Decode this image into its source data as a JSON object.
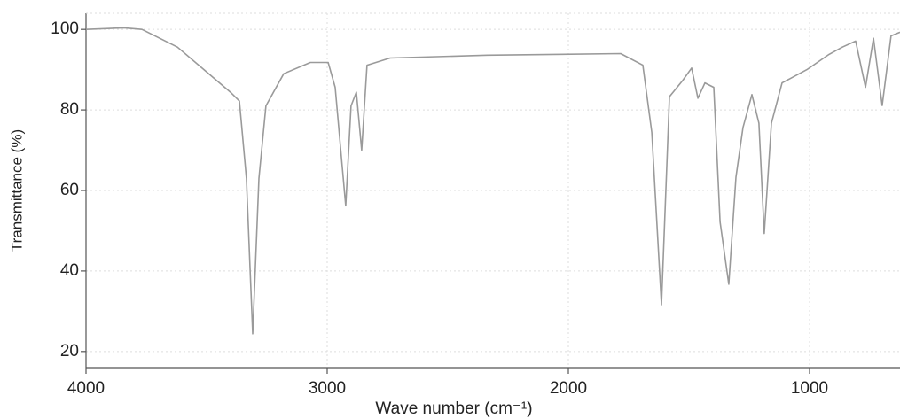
{
  "chart_data": {
    "type": "line",
    "x_label": "Wave number (cm⁻¹)",
    "y_label": "Transmittance (%)",
    "x": [
      4000,
      3842,
      3768,
      3621,
      3511,
      3401,
      3364,
      3335,
      3309,
      3283,
      3254,
      3180,
      3070,
      2996,
      2967,
      2923,
      2901,
      2879,
      2857,
      2835,
      2739,
      2335,
      1783,
      1691,
      1654,
      1614,
      1581,
      1526,
      1489,
      1463,
      1434,
      1397,
      1371,
      1335,
      1305,
      1276,
      1239,
      1210,
      1188,
      1158,
      1114,
      1011,
      919,
      864,
      809,
      768,
      735,
      699,
      662,
      625
    ],
    "values": [
      100,
      100.4,
      100,
      95.6,
      90,
      84.4,
      82.2,
      63,
      24.4,
      63,
      81,
      89,
      91.8,
      91.8,
      85.6,
      56.2,
      81,
      84.4,
      70,
      91.1,
      92.9,
      93.6,
      94,
      91.1,
      74.4,
      31.6,
      83.3,
      87.3,
      90.4,
      82.9,
      86.7,
      85.6,
      52.2,
      36.7,
      63.3,
      75.6,
      83.8,
      76.7,
      49.3,
      76.7,
      86.7,
      90,
      93.8,
      95.6,
      97.1,
      85.6,
      97.8,
      81.1,
      98.4,
      99.3
    ],
    "color": "#9a9a9a",
    "xlim": [
      4000,
      625
    ],
    "xticks": [
      4000,
      3000,
      2000,
      1000
    ],
    "ylim": [
      16,
      104
    ],
    "yticks": [
      20,
      40,
      60,
      80,
      100
    ],
    "grid": true
  }
}
